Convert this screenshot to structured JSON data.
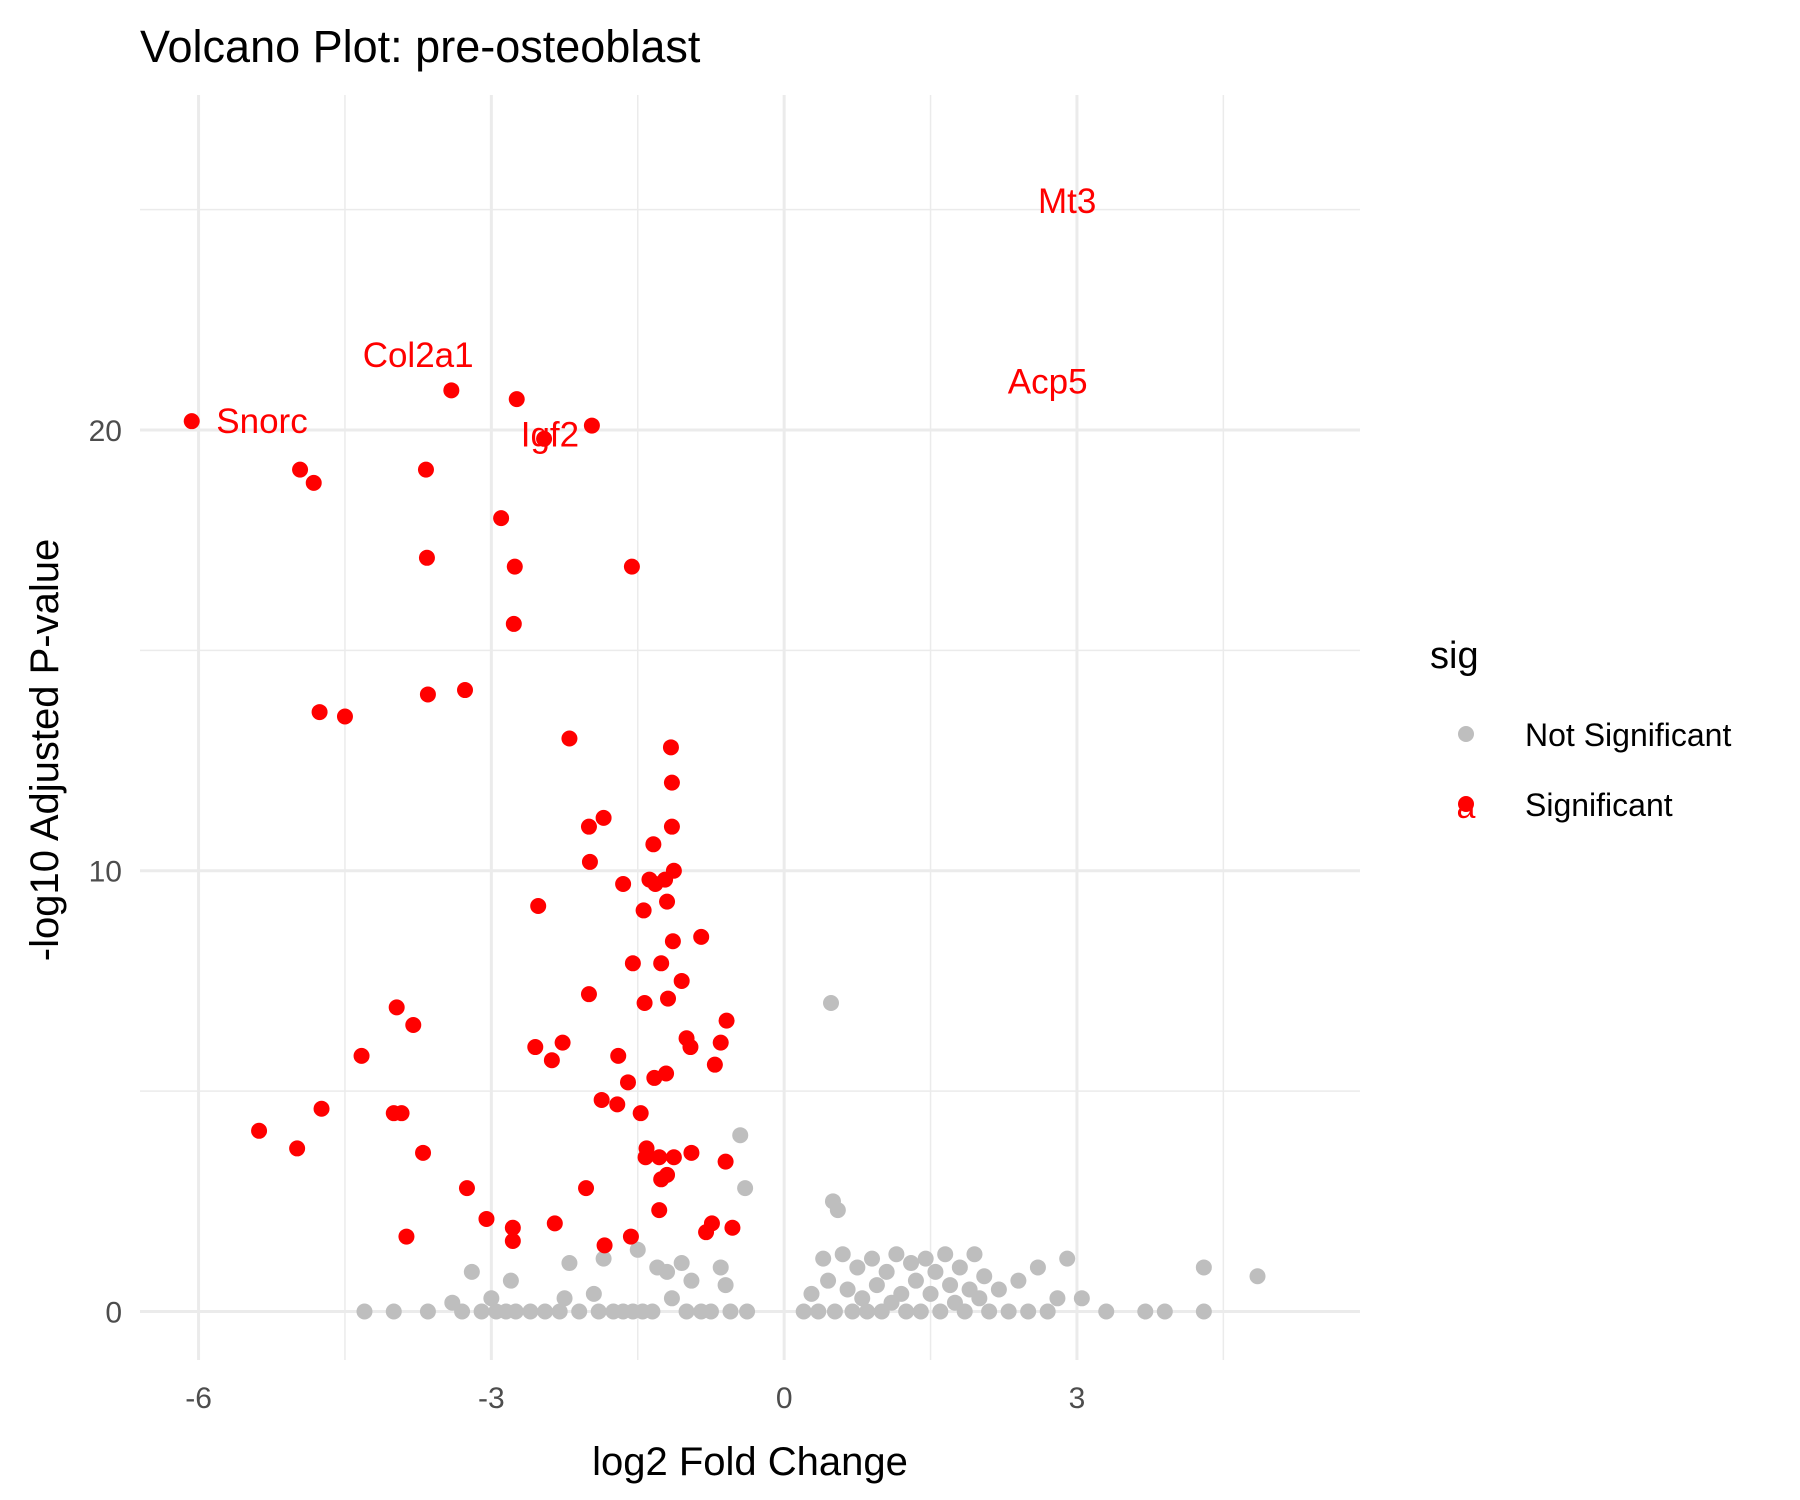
{
  "chart_data": {
    "type": "scatter",
    "title": "Volcano Plot: pre-osteoblast",
    "xlabel": "log2 Fold Change",
    "ylabel": "-log10 Adjusted P-value",
    "xlim": [
      -6.6,
      5.9
    ],
    "ylim": [
      -1.1,
      27.6
    ],
    "x_ticks": [
      -6,
      -3,
      0,
      3
    ],
    "x_tick_labels": [
      "-6",
      "-3",
      "0",
      "3"
    ],
    "y_ticks": [
      0,
      10,
      20
    ],
    "y_tick_labels": [
      "0",
      "10",
      "20"
    ],
    "grid": true,
    "legend": {
      "title": "sig",
      "position": "right",
      "entries": [
        {
          "label": "Not Significant",
          "color": "#bebebe"
        },
        {
          "label": "Significant",
          "color": "#ff0000",
          "key_glyph": "a"
        }
      ]
    },
    "colors": {
      "Not Significant": "#bebebe",
      "Significant": "#ff0000"
    },
    "series": [
      {
        "name": "Significant",
        "color": "#ff0000",
        "points": [
          [
            -6.07,
            20.2
          ],
          [
            -4.96,
            19.1
          ],
          [
            -4.82,
            18.8
          ],
          [
            -4.76,
            13.6
          ],
          [
            -4.5,
            13.5
          ],
          [
            -4.74,
            4.6
          ],
          [
            -5.38,
            4.1
          ],
          [
            -4.99,
            3.7
          ],
          [
            -4.33,
            5.8
          ],
          [
            -3.97,
            6.9
          ],
          [
            -3.8,
            6.5
          ],
          [
            -4.0,
            4.5
          ],
          [
            -3.92,
            4.5
          ],
          [
            -3.87,
            1.7
          ],
          [
            -3.7,
            3.6
          ],
          [
            -3.41,
            20.9
          ],
          [
            -3.67,
            19.1
          ],
          [
            -3.66,
            17.1
          ],
          [
            -3.65,
            14.0
          ],
          [
            -3.27,
            14.1
          ],
          [
            -3.25,
            2.8
          ],
          [
            -3.05,
            2.1
          ],
          [
            -2.9,
            18.0
          ],
          [
            -2.76,
            16.9
          ],
          [
            -2.77,
            15.6
          ],
          [
            -2.74,
            20.7
          ],
          [
            -2.78,
            1.9
          ],
          [
            -2.78,
            1.6
          ],
          [
            -2.55,
            6.0
          ],
          [
            -2.52,
            9.2
          ],
          [
            -2.38,
            5.7
          ],
          [
            -2.27,
            6.1
          ],
          [
            -2.35,
            2.0
          ],
          [
            -2.46,
            19.8
          ],
          [
            -2.2,
            13.0
          ],
          [
            -1.97,
            20.1
          ],
          [
            -2.0,
            11.0
          ],
          [
            -1.85,
            11.2
          ],
          [
            -1.99,
            10.2
          ],
          [
            -2.0,
            7.2
          ],
          [
            -1.87,
            4.8
          ],
          [
            -2.03,
            2.8
          ],
          [
            -1.84,
            1.5
          ],
          [
            -1.7,
            5.8
          ],
          [
            -1.71,
            4.7
          ],
          [
            -1.65,
            9.7
          ],
          [
            -1.6,
            5.2
          ],
          [
            -1.56,
            16.9
          ],
          [
            -1.55,
            7.9
          ],
          [
            -1.57,
            1.7
          ],
          [
            -1.47,
            4.5
          ],
          [
            -1.41,
            3.7
          ],
          [
            -1.42,
            3.5
          ],
          [
            -1.44,
            9.1
          ],
          [
            -1.43,
            7.0
          ],
          [
            -1.38,
            9.8
          ],
          [
            -1.34,
            10.6
          ],
          [
            -1.33,
            5.3
          ],
          [
            -1.32,
            9.7
          ],
          [
            -1.28,
            2.3
          ],
          [
            -1.26,
            7.9
          ],
          [
            -1.28,
            3.5
          ],
          [
            -1.26,
            3.0
          ],
          [
            -1.21,
            5.4
          ],
          [
            -1.22,
            9.8
          ],
          [
            -1.2,
            3.1
          ],
          [
            -1.19,
            7.1
          ],
          [
            -1.16,
            12.8
          ],
          [
            -1.15,
            12.0
          ],
          [
            -1.15,
            11.0
          ],
          [
            -1.14,
            8.4
          ],
          [
            -1.13,
            10.0
          ],
          [
            -1.13,
            3.5
          ],
          [
            -1.2,
            9.3
          ],
          [
            -1.05,
            7.5
          ],
          [
            -1.0,
            6.2
          ],
          [
            -0.96,
            6.0
          ],
          [
            -0.95,
            3.6
          ],
          [
            -0.85,
            8.5
          ],
          [
            -0.8,
            1.8
          ],
          [
            -0.74,
            2.0
          ],
          [
            -0.71,
            5.6
          ],
          [
            -0.65,
            6.1
          ],
          [
            -0.6,
            3.4
          ],
          [
            -0.59,
            6.6
          ],
          [
            -0.53,
            1.9
          ]
        ]
      },
      {
        "name": "Not Significant",
        "color": "#bebebe",
        "points": [
          [
            -4.3,
            0.0
          ],
          [
            -4.0,
            0.0
          ],
          [
            -3.65,
            0.0
          ],
          [
            -3.4,
            0.2
          ],
          [
            -3.3,
            0.0
          ],
          [
            -3.2,
            0.9
          ],
          [
            -3.1,
            0.0
          ],
          [
            -3.0,
            0.3
          ],
          [
            -2.95,
            0.0
          ],
          [
            -2.85,
            0.0
          ],
          [
            -2.8,
            0.7
          ],
          [
            -2.75,
            0.0
          ],
          [
            -2.6,
            0.0
          ],
          [
            -2.45,
            0.0
          ],
          [
            -2.3,
            0.0
          ],
          [
            -2.25,
            0.3
          ],
          [
            -2.2,
            1.1
          ],
          [
            -2.1,
            0.0
          ],
          [
            -1.95,
            0.4
          ],
          [
            -1.9,
            0.0
          ],
          [
            -1.85,
            1.2
          ],
          [
            -1.75,
            0.0
          ],
          [
            -1.65,
            0.0
          ],
          [
            -1.55,
            0.0
          ],
          [
            -1.5,
            1.4
          ],
          [
            -1.45,
            0.0
          ],
          [
            -1.35,
            0.0
          ],
          [
            -1.3,
            1.0
          ],
          [
            -1.2,
            0.9
          ],
          [
            -1.15,
            0.3
          ],
          [
            -1.05,
            1.1
          ],
          [
            -1.0,
            0.0
          ],
          [
            -0.95,
            0.7
          ],
          [
            -0.85,
            0.0
          ],
          [
            -0.75,
            0.0
          ],
          [
            -0.65,
            1.0
          ],
          [
            -0.6,
            0.6
          ],
          [
            -0.55,
            0.0
          ],
          [
            -0.45,
            4.0
          ],
          [
            -0.4,
            2.8
          ],
          [
            -0.38,
            0.0
          ],
          [
            0.2,
            0.0
          ],
          [
            0.28,
            0.4
          ],
          [
            0.35,
            0.0
          ],
          [
            0.4,
            1.2
          ],
          [
            0.45,
            0.7
          ],
          [
            0.48,
            7.0
          ],
          [
            0.5,
            2.5
          ],
          [
            0.52,
            0.0
          ],
          [
            0.55,
            2.3
          ],
          [
            0.6,
            1.3
          ],
          [
            0.65,
            0.5
          ],
          [
            0.7,
            0.0
          ],
          [
            0.75,
            1.0
          ],
          [
            0.8,
            0.3
          ],
          [
            0.85,
            0.0
          ],
          [
            0.9,
            1.2
          ],
          [
            0.95,
            0.6
          ],
          [
            1.0,
            0.0
          ],
          [
            1.05,
            0.9
          ],
          [
            1.1,
            0.2
          ],
          [
            1.15,
            1.3
          ],
          [
            1.2,
            0.4
          ],
          [
            1.25,
            0.0
          ],
          [
            1.3,
            1.1
          ],
          [
            1.35,
            0.7
          ],
          [
            1.4,
            0.0
          ],
          [
            1.45,
            1.2
          ],
          [
            1.5,
            0.4
          ],
          [
            1.55,
            0.9
          ],
          [
            1.6,
            0.0
          ],
          [
            1.65,
            1.3
          ],
          [
            1.7,
            0.6
          ],
          [
            1.75,
            0.2
          ],
          [
            1.8,
            1.0
          ],
          [
            1.85,
            0.0
          ],
          [
            1.9,
            0.5
          ],
          [
            1.95,
            1.3
          ],
          [
            2.0,
            0.3
          ],
          [
            2.05,
            0.8
          ],
          [
            2.1,
            0.0
          ],
          [
            2.2,
            0.5
          ],
          [
            2.3,
            0.0
          ],
          [
            2.4,
            0.7
          ],
          [
            2.5,
            0.0
          ],
          [
            2.6,
            1.0
          ],
          [
            2.7,
            0.0
          ],
          [
            2.8,
            0.3
          ],
          [
            2.9,
            1.2
          ],
          [
            3.05,
            0.3
          ],
          [
            3.3,
            0.0
          ],
          [
            3.7,
            0.0
          ],
          [
            3.9,
            0.0
          ],
          [
            4.3,
            1.0
          ],
          [
            4.3,
            0.0
          ],
          [
            4.85,
            0.8
          ]
        ]
      }
    ],
    "annotations": [
      {
        "text": "Mt3",
        "x": 2.9,
        "y": 25.2
      },
      {
        "text": "Col2a1",
        "x": -3.75,
        "y": 21.7
      },
      {
        "text": "Acp5",
        "x": 2.7,
        "y": 21.1
      },
      {
        "text": "Snorc",
        "x": -5.35,
        "y": 20.2
      },
      {
        "text": "Igf2",
        "x": -2.4,
        "y": 19.9
      }
    ]
  }
}
